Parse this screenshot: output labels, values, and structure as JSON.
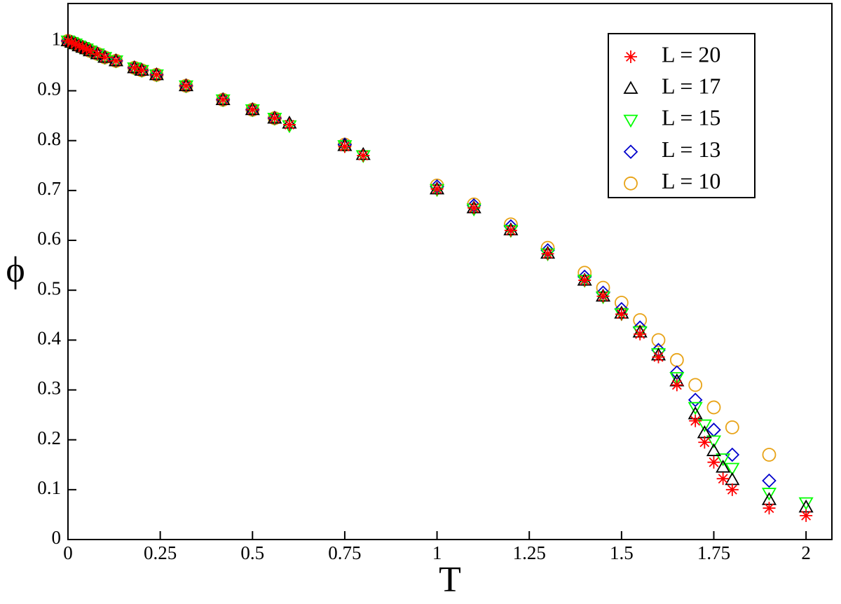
{
  "chart_data": {
    "type": "scatter",
    "x_label": "T",
    "y_label": "ϕ",
    "xlim": [
      0,
      2.07
    ],
    "ylim": [
      0,
      1.075
    ],
    "xticks": [
      0,
      0.25,
      0.5,
      0.75,
      1,
      1.25,
      1.5,
      1.75,
      2
    ],
    "yticks": [
      0,
      0.1,
      0.2,
      0.3,
      0.4,
      0.5,
      0.6,
      0.7,
      0.8,
      0.9,
      1
    ],
    "legend": "upper right",
    "series": [
      {
        "name": "L = 20",
        "color": "#ff0000",
        "marker": "asterisk",
        "x": [
          0,
          0.01,
          0.02,
          0.03,
          0.04,
          0.05,
          0.06,
          0.08,
          0.1,
          0.13,
          0.18,
          0.2,
          0.24,
          0.32,
          0.42,
          0.5,
          0.56,
          0.6,
          0.75,
          0.8,
          1,
          1.1,
          1.2,
          1.3,
          1.4,
          1.45,
          1.5,
          1.55,
          1.6,
          1.65,
          1.7,
          1.725,
          1.75,
          1.775,
          1.8,
          1.9,
          2
        ],
        "values": [
          1,
          0.997,
          0.994,
          0.99,
          0.987,
          0.984,
          0.98,
          0.974,
          0.967,
          0.96,
          0.946,
          0.941,
          0.932,
          0.91,
          0.882,
          0.862,
          0.845,
          0.832,
          0.788,
          0.77,
          0.703,
          0.665,
          0.62,
          0.573,
          0.52,
          0.488,
          0.452,
          0.412,
          0.366,
          0.31,
          0.238,
          0.195,
          0.155,
          0.122,
          0.1,
          0.063,
          0.048
        ]
      },
      {
        "name": "L = 17",
        "color": "#000000",
        "marker": "triangle-up",
        "x": [
          0,
          0.01,
          0.02,
          0.03,
          0.04,
          0.05,
          0.06,
          0.08,
          0.1,
          0.13,
          0.18,
          0.2,
          0.24,
          0.32,
          0.42,
          0.5,
          0.56,
          0.6,
          0.75,
          0.8,
          1,
          1.1,
          1.2,
          1.3,
          1.4,
          1.45,
          1.5,
          1.55,
          1.6,
          1.65,
          1.7,
          1.725,
          1.75,
          1.775,
          1.8,
          1.9,
          2
        ],
        "values": [
          1,
          0.997,
          0.994,
          0.99,
          0.987,
          0.984,
          0.98,
          0.974,
          0.967,
          0.96,
          0.946,
          0.941,
          0.932,
          0.91,
          0.882,
          0.862,
          0.845,
          0.835,
          0.79,
          0.772,
          0.703,
          0.665,
          0.621,
          0.574,
          0.52,
          0.488,
          0.454,
          0.416,
          0.37,
          0.318,
          0.252,
          0.214,
          0.178,
          0.145,
          0.12,
          0.08,
          0.065
        ]
      },
      {
        "name": "L = 15",
        "color": "#00ff00",
        "marker": "triangle-down",
        "x": [
          0,
          0.01,
          0.02,
          0.03,
          0.04,
          0.05,
          0.06,
          0.08,
          0.1,
          0.13,
          0.18,
          0.2,
          0.24,
          0.32,
          0.42,
          0.5,
          0.56,
          0.6,
          0.75,
          0.8,
          1,
          1.1,
          1.2,
          1.3,
          1.4,
          1.45,
          1.5,
          1.55,
          1.6,
          1.65,
          1.7,
          1.725,
          1.75,
          1.775,
          1.8,
          1.9,
          2
        ],
        "values": [
          1,
          0.997,
          0.994,
          0.99,
          0.987,
          0.984,
          0.98,
          0.974,
          0.967,
          0.96,
          0.946,
          0.941,
          0.932,
          0.91,
          0.882,
          0.862,
          0.845,
          0.83,
          0.79,
          0.77,
          0.702,
          0.663,
          0.62,
          0.573,
          0.52,
          0.487,
          0.453,
          0.417,
          0.373,
          0.325,
          0.265,
          0.23,
          0.198,
          0.162,
          0.143,
          0.093,
          0.074
        ]
      },
      {
        "name": "L = 13",
        "color": "#0000cc",
        "marker": "diamond",
        "x": [
          0,
          0.01,
          0.02,
          0.03,
          0.04,
          0.05,
          0.06,
          0.08,
          0.1,
          0.13,
          0.18,
          0.2,
          0.24,
          0.32,
          0.42,
          0.5,
          0.56,
          0.75,
          1,
          1.1,
          1.2,
          1.3,
          1.4,
          1.45,
          1.5,
          1.55,
          1.6,
          1.65,
          1.7,
          1.75,
          1.8,
          1.9
        ],
        "values": [
          1,
          0.997,
          0.994,
          0.99,
          0.987,
          0.984,
          0.98,
          0.974,
          0.967,
          0.96,
          0.946,
          0.941,
          0.932,
          0.91,
          0.882,
          0.862,
          0.845,
          0.792,
          0.708,
          0.67,
          0.628,
          0.58,
          0.527,
          0.495,
          0.462,
          0.425,
          0.38,
          0.335,
          0.28,
          0.22,
          0.17,
          0.118
        ]
      },
      {
        "name": "L = 10",
        "color": "#e8a317",
        "marker": "circle",
        "x": [
          0,
          0.01,
          0.02,
          0.03,
          0.04,
          0.05,
          0.06,
          0.08,
          0.1,
          0.13,
          0.18,
          0.2,
          0.24,
          0.32,
          0.42,
          0.5,
          0.56,
          0.75,
          1,
          1.1,
          1.2,
          1.3,
          1.4,
          1.45,
          1.5,
          1.55,
          1.6,
          1.65,
          1.7,
          1.75,
          1.8,
          1.9
        ],
        "values": [
          1,
          0.997,
          0.994,
          0.99,
          0.987,
          0.984,
          0.98,
          0.974,
          0.967,
          0.96,
          0.946,
          0.941,
          0.932,
          0.91,
          0.882,
          0.862,
          0.845,
          0.792,
          0.71,
          0.672,
          0.632,
          0.585,
          0.535,
          0.505,
          0.475,
          0.44,
          0.4,
          0.36,
          0.31,
          0.265,
          0.225,
          0.17
        ]
      }
    ]
  }
}
